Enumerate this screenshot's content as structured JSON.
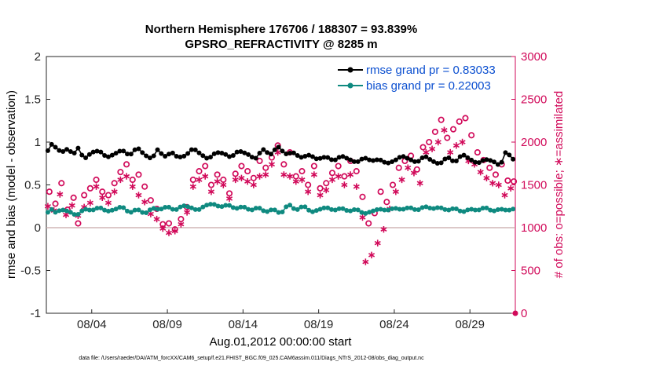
{
  "chart_data": {
    "type": "line",
    "title": "Northern Hemisphere 176706 / 188307 = 93.839%",
    "subtitle": "GPSRO_REFRACTIVITY @ 8285 m",
    "xlabel": "Aug.01,2012 00:00:00 start",
    "ylabel": "rmse and bias (model - observation)",
    "y2label": "# of obs: o=possible; ∗=assimilated",
    "xlim": [
      1.0,
      32.0
    ],
    "ylim": [
      -1,
      2
    ],
    "y2lim": [
      0,
      3000
    ],
    "x_ticks": [
      4,
      9,
      14,
      19,
      24,
      29
    ],
    "x_tick_labels": [
      "08/04",
      "08/09",
      "08/14",
      "08/19",
      "08/24",
      "08/29"
    ],
    "y_ticks": [
      -1,
      -0.5,
      0,
      0.5,
      1,
      1.5,
      2
    ],
    "y_tick_labels": [
      "-1",
      "-0.5",
      "0",
      "0.5",
      "1",
      "1.5",
      "2"
    ],
    "y2_ticks": [
      0,
      500,
      1000,
      1500,
      2000,
      2500,
      3000
    ],
    "y2_tick_labels": [
      "0",
      "500",
      "1000",
      "1500",
      "2000",
      "2500",
      "3000"
    ],
    "legend_position": "top-right",
    "series": [
      {
        "name": "rmse grand pr = 0.83033",
        "color": "#000000",
        "marker": "filled-circle",
        "axis": "left",
        "knots": [
          [
            1.0,
            0.86
          ],
          [
            1.3,
            0.98
          ],
          [
            1.6,
            0.94
          ],
          [
            2.0,
            0.88
          ],
          [
            2.4,
            0.92
          ],
          [
            2.8,
            0.86
          ],
          [
            3.1,
            0.93
          ],
          [
            3.5,
            0.8
          ],
          [
            4.0,
            0.88
          ],
          [
            4.5,
            0.9
          ],
          [
            5.0,
            0.82
          ],
          [
            5.5,
            0.86
          ],
          [
            6.0,
            0.91
          ],
          [
            6.5,
            0.84
          ],
          [
            7.0,
            0.94
          ],
          [
            7.5,
            0.85
          ],
          [
            8.0,
            0.8
          ],
          [
            8.3,
            0.92
          ],
          [
            8.8,
            0.83
          ],
          [
            9.3,
            0.88
          ],
          [
            9.7,
            0.82
          ],
          [
            10.2,
            0.84
          ],
          [
            10.7,
            0.93
          ],
          [
            11.2,
            0.86
          ],
          [
            11.7,
            0.8
          ],
          [
            12.2,
            0.88
          ],
          [
            12.7,
            0.87
          ],
          [
            13.2,
            0.82
          ],
          [
            13.7,
            0.9
          ],
          [
            14.3,
            0.86
          ],
          [
            14.8,
            0.8
          ],
          [
            15.3,
            0.92
          ],
          [
            15.8,
            0.85
          ],
          [
            16.3,
            0.95
          ],
          [
            16.8,
            0.86
          ],
          [
            17.3,
            0.88
          ],
          [
            17.8,
            0.82
          ],
          [
            18.4,
            0.85
          ],
          [
            18.9,
            0.8
          ],
          [
            19.5,
            0.83
          ],
          [
            20.0,
            0.78
          ],
          [
            20.5,
            0.84
          ],
          [
            21.0,
            0.8
          ],
          [
            21.5,
            0.76
          ],
          [
            22.0,
            0.82
          ],
          [
            22.5,
            0.78
          ],
          [
            23.0,
            0.8
          ],
          [
            23.5,
            0.75
          ],
          [
            24.0,
            0.78
          ],
          [
            24.5,
            0.84
          ],
          [
            25.0,
            0.8
          ],
          [
            25.5,
            0.76
          ],
          [
            26.0,
            0.84
          ],
          [
            26.5,
            0.78
          ],
          [
            27.0,
            0.74
          ],
          [
            27.5,
            0.83
          ],
          [
            28.0,
            0.76
          ],
          [
            28.5,
            0.86
          ],
          [
            29.0,
            0.8
          ],
          [
            29.5,
            0.75
          ],
          [
            30.0,
            0.8
          ],
          [
            30.5,
            0.78
          ],
          [
            31.0,
            0.72
          ],
          [
            31.4,
            0.9
          ],
          [
            31.8,
            0.8
          ]
        ]
      },
      {
        "name": "bias grand pr = 0.22003",
        "color": "#0f8a80",
        "marker": "filled-circle",
        "axis": "left",
        "knots": [
          [
            1.0,
            0.16
          ],
          [
            1.3,
            0.22
          ],
          [
            1.6,
            0.18
          ],
          [
            2.0,
            0.21
          ],
          [
            2.5,
            0.19
          ],
          [
            3.0,
            0.14
          ],
          [
            3.5,
            0.22
          ],
          [
            4.0,
            0.2
          ],
          [
            4.5,
            0.24
          ],
          [
            5.0,
            0.19
          ],
          [
            5.5,
            0.21
          ],
          [
            6.0,
            0.25
          ],
          [
            6.5,
            0.17
          ],
          [
            7.0,
            0.22
          ],
          [
            7.5,
            0.16
          ],
          [
            8.0,
            0.23
          ],
          [
            8.5,
            0.21
          ],
          [
            9.0,
            0.25
          ],
          [
            9.5,
            0.2
          ],
          [
            10.0,
            0.26
          ],
          [
            10.5,
            0.24
          ],
          [
            11.0,
            0.2
          ],
          [
            11.5,
            0.26
          ],
          [
            12.0,
            0.28
          ],
          [
            12.5,
            0.24
          ],
          [
            13.0,
            0.27
          ],
          [
            13.5,
            0.22
          ],
          [
            14.0,
            0.25
          ],
          [
            14.5,
            0.2
          ],
          [
            15.0,
            0.24
          ],
          [
            15.5,
            0.18
          ],
          [
            16.0,
            0.22
          ],
          [
            16.5,
            0.16
          ],
          [
            17.0,
            0.28
          ],
          [
            17.5,
            0.2
          ],
          [
            18.0,
            0.26
          ],
          [
            18.5,
            0.18
          ],
          [
            19.0,
            0.21
          ],
          [
            19.5,
            0.24
          ],
          [
            20.0,
            0.2
          ],
          [
            20.5,
            0.23
          ],
          [
            21.0,
            0.19
          ],
          [
            21.5,
            0.22
          ],
          [
            22.0,
            0.16
          ],
          [
            22.5,
            0.19
          ],
          [
            23.0,
            0.22
          ],
          [
            23.5,
            0.2
          ],
          [
            24.0,
            0.23
          ],
          [
            24.5,
            0.21
          ],
          [
            25.0,
            0.24
          ],
          [
            25.5,
            0.2
          ],
          [
            26.0,
            0.25
          ],
          [
            26.5,
            0.22
          ],
          [
            27.0,
            0.24
          ],
          [
            27.5,
            0.2
          ],
          [
            28.0,
            0.23
          ],
          [
            28.5,
            0.18
          ],
          [
            29.0,
            0.22
          ],
          [
            29.5,
            0.2
          ],
          [
            30.0,
            0.24
          ],
          [
            30.5,
            0.19
          ],
          [
            31.0,
            0.22
          ],
          [
            31.5,
            0.2
          ],
          [
            31.9,
            0.22
          ]
        ]
      },
      {
        "name": "possible",
        "color": "#d10a5a",
        "marker": "open-circle",
        "axis": "right",
        "points": [
          [
            1.2,
            1420
          ],
          [
            1.6,
            1280
          ],
          [
            2.0,
            1520
          ],
          [
            2.4,
            1210
          ],
          [
            2.8,
            1350
          ],
          [
            3.1,
            1050
          ],
          [
            3.5,
            1380
          ],
          [
            3.9,
            1460
          ],
          [
            4.3,
            1560
          ],
          [
            4.7,
            1420
          ],
          [
            5.1,
            1380
          ],
          [
            5.5,
            1520
          ],
          [
            5.9,
            1650
          ],
          [
            6.3,
            1740
          ],
          [
            6.7,
            1560
          ],
          [
            7.1,
            1620
          ],
          [
            7.5,
            1480
          ],
          [
            7.9,
            1320
          ],
          [
            8.3,
            1220
          ],
          [
            8.7,
            1040
          ],
          [
            9.1,
            1050
          ],
          [
            9.5,
            980
          ],
          [
            9.9,
            1100
          ],
          [
            10.3,
            1240
          ],
          [
            10.7,
            1560
          ],
          [
            11.1,
            1660
          ],
          [
            11.5,
            1720
          ],
          [
            11.9,
            1500
          ],
          [
            12.3,
            1620
          ],
          [
            12.7,
            1560
          ],
          [
            13.1,
            1400
          ],
          [
            13.5,
            1630
          ],
          [
            13.9,
            1720
          ],
          [
            14.3,
            1660
          ],
          [
            14.7,
            1580
          ],
          [
            15.1,
            1780
          ],
          [
            15.5,
            1700
          ],
          [
            15.9,
            1820
          ],
          [
            16.3,
            1960
          ],
          [
            16.7,
            1740
          ],
          [
            17.1,
            1880
          ],
          [
            17.5,
            1600
          ],
          [
            17.9,
            1660
          ],
          [
            18.3,
            1500
          ],
          [
            18.7,
            1720
          ],
          [
            19.1,
            1460
          ],
          [
            19.5,
            1520
          ],
          [
            19.9,
            1640
          ],
          [
            20.3,
            1720
          ],
          [
            20.7,
            1600
          ],
          [
            21.1,
            1780
          ],
          [
            21.5,
            1660
          ],
          [
            21.9,
            1360
          ],
          [
            22.3,
            1050
          ],
          [
            22.7,
            1170
          ],
          [
            23.1,
            1420
          ],
          [
            23.5,
            1300
          ],
          [
            23.9,
            1500
          ],
          [
            24.3,
            1700
          ],
          [
            24.7,
            1780
          ],
          [
            25.1,
            1840
          ],
          [
            25.5,
            1680
          ],
          [
            25.9,
            1940
          ],
          [
            26.3,
            2000
          ],
          [
            26.7,
            2120
          ],
          [
            27.1,
            2260
          ],
          [
            27.5,
            2050
          ],
          [
            27.9,
            2150
          ],
          [
            28.3,
            2240
          ],
          [
            28.7,
            2280
          ],
          [
            29.1,
            2080
          ],
          [
            29.5,
            1880
          ],
          [
            29.9,
            1790
          ],
          [
            30.3,
            1700
          ],
          [
            30.7,
            1620
          ],
          [
            31.1,
            1740
          ],
          [
            31.5,
            1550
          ],
          [
            31.9,
            1540
          ]
        ]
      },
      {
        "name": "assimilated",
        "color": "#d10a5a",
        "marker": "asterisk",
        "axis": "right",
        "points": [
          [
            1.1,
            1250
          ],
          [
            1.5,
            1200
          ],
          [
            1.9,
            1390
          ],
          [
            2.3,
            1150
          ],
          [
            2.7,
            1260
          ],
          [
            3.1,
            1140
          ],
          [
            3.5,
            1240
          ],
          [
            3.9,
            1290
          ],
          [
            4.3,
            1480
          ],
          [
            4.7,
            1350
          ],
          [
            5.1,
            1290
          ],
          [
            5.5,
            1420
          ],
          [
            5.9,
            1560
          ],
          [
            6.3,
            1600
          ],
          [
            6.7,
            1480
          ],
          [
            7.1,
            1380
          ],
          [
            7.5,
            1300
          ],
          [
            7.9,
            1160
          ],
          [
            8.3,
            1100
          ],
          [
            8.7,
            990
          ],
          [
            9.1,
            940
          ],
          [
            9.5,
            960
          ],
          [
            9.9,
            1040
          ],
          [
            10.3,
            1180
          ],
          [
            10.7,
            1480
          ],
          [
            11.1,
            1560
          ],
          [
            11.5,
            1600
          ],
          [
            11.9,
            1420
          ],
          [
            12.3,
            1540
          ],
          [
            12.7,
            1500
          ],
          [
            13.1,
            1340
          ],
          [
            13.5,
            1560
          ],
          [
            13.9,
            1580
          ],
          [
            14.3,
            1540
          ],
          [
            14.7,
            1500
          ],
          [
            15.1,
            1600
          ],
          [
            15.5,
            1620
          ],
          [
            15.9,
            1740
          ],
          [
            16.3,
            1880
          ],
          [
            16.7,
            1620
          ],
          [
            17.1,
            1600
          ],
          [
            17.5,
            1540
          ],
          [
            17.9,
            1560
          ],
          [
            18.3,
            1420
          ],
          [
            18.7,
            1620
          ],
          [
            19.1,
            1380
          ],
          [
            19.5,
            1440
          ],
          [
            19.9,
            1560
          ],
          [
            20.3,
            1600
          ],
          [
            20.7,
            1500
          ],
          [
            21.1,
            1620
          ],
          [
            21.5,
            1480
          ],
          [
            21.9,
            1120
          ],
          [
            22.1,
            600
          ],
          [
            22.5,
            680
          ],
          [
            22.9,
            820
          ],
          [
            23.3,
            980
          ],
          [
            23.7,
            1220
          ],
          [
            24.1,
            1420
          ],
          [
            24.5,
            1560
          ],
          [
            24.9,
            1700
          ],
          [
            25.3,
            1640
          ],
          [
            25.7,
            1520
          ],
          [
            26.1,
            1880
          ],
          [
            26.5,
            1920
          ],
          [
            26.9,
            2000
          ],
          [
            27.3,
            2140
          ],
          [
            27.7,
            1880
          ],
          [
            28.1,
            1960
          ],
          [
            28.5,
            2000
          ],
          [
            28.9,
            1780
          ],
          [
            29.3,
            1740
          ],
          [
            29.7,
            1650
          ],
          [
            30.1,
            1580
          ],
          [
            30.5,
            1520
          ],
          [
            30.9,
            1500
          ],
          [
            31.3,
            1380
          ],
          [
            31.7,
            1460
          ]
        ]
      }
    ],
    "reference_line": {
      "y": 0,
      "color": "#c8a8a8"
    }
  },
  "footnote": "data file: /Users/raeder/DAI/ATM_forcXX/CAM6_setup/f.e21.FHIST_BGC.f09_025.CAM6assim.011/Diags_NTrS_2012-08/obs_diag_output.nc"
}
